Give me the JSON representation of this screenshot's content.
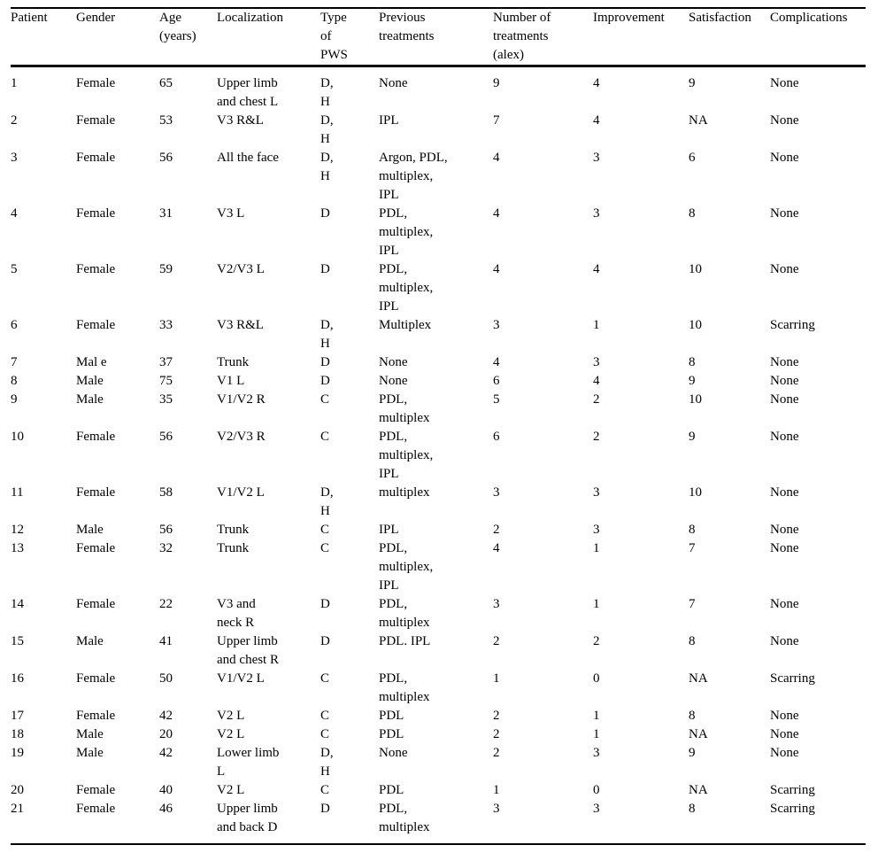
{
  "colors": {
    "background": "#ffffff",
    "text": "#000000",
    "border": "#000000"
  },
  "table": {
    "columns": [
      {
        "id": "patient",
        "label": "Patient"
      },
      {
        "id": "gender",
        "label": "Gender"
      },
      {
        "id": "age",
        "label": "Age\n(years)"
      },
      {
        "id": "localization",
        "label": "Localization"
      },
      {
        "id": "type_of_pws",
        "label": "Type\nof\nPWS"
      },
      {
        "id": "previous_treatments",
        "label": "Previous\ntreatments"
      },
      {
        "id": "number_of_treatments",
        "label": "Number of\ntreatments\n(alex)"
      },
      {
        "id": "improvement",
        "label": "Improvement"
      },
      {
        "id": "satisfaction",
        "label": "Satisfaction"
      },
      {
        "id": "complications",
        "label": "Complications"
      }
    ],
    "rows": [
      [
        "1",
        "Female",
        "65",
        "Upper limb\nand chest L",
        "D,\nH",
        "None",
        "9",
        "4",
        "9",
        "None"
      ],
      [
        "2",
        "Female",
        "53",
        "V3 R&L",
        "D,\nH",
        "IPL",
        "7",
        "4",
        "NA",
        "None"
      ],
      [
        "3",
        "Female",
        "56",
        "All the face",
        "D,\nH",
        "Argon, PDL,\nmultiplex,\nIPL",
        "4",
        "3",
        "6",
        "None"
      ],
      [
        "4",
        "Female",
        "31",
        "V3 L",
        "D",
        "PDL,\nmultiplex,\nIPL",
        "4",
        "3",
        "8",
        "None"
      ],
      [
        "5",
        "Female",
        "59",
        "V2/V3 L",
        "D",
        "PDL,\nmultiplex,\nIPL",
        "4",
        "4",
        "10",
        "None"
      ],
      [
        "6",
        "Female",
        "33",
        "V3 R&L",
        "D,\nH",
        "Multiplex",
        "3",
        "1",
        "10",
        "Scarring"
      ],
      [
        "7",
        "Mal e",
        "37",
        "Trunk",
        "D",
        "None",
        "4",
        "3",
        "8",
        "None"
      ],
      [
        "8",
        "Male",
        "75",
        "V1 L",
        "D",
        "None",
        "6",
        "4",
        "9",
        "None"
      ],
      [
        "9",
        "Male",
        "35",
        "V1/V2 R",
        "C",
        "PDL,\nmultiplex",
        "5",
        "2",
        "10",
        "None"
      ],
      [
        "10",
        "Female",
        "56",
        "V2/V3 R",
        "C",
        "PDL,\nmultiplex,\nIPL",
        "6",
        "2",
        "9",
        "None"
      ],
      [
        "11",
        "Female",
        "58",
        "V1/V2 L",
        "D,\nH",
        "multiplex",
        "3",
        "3",
        "10",
        "None"
      ],
      [
        "12",
        "Male",
        "56",
        "Trunk",
        "C",
        "IPL",
        "2",
        "3",
        "8",
        "None"
      ],
      [
        "13",
        "Female",
        "32",
        "Trunk",
        "C",
        "PDL,\nmultiplex,\nIPL",
        "4",
        "1",
        "7",
        "None"
      ],
      [
        "14",
        "Female",
        "22",
        "V3 and\nneck R",
        "D",
        "PDL,\nmultiplex",
        "3",
        "1",
        "7",
        "None"
      ],
      [
        "15",
        "Male",
        "41",
        "Upper limb\nand chest R",
        "D",
        "PDL. IPL",
        "2",
        "2",
        "8",
        "None"
      ],
      [
        "16",
        "Female",
        "50",
        "V1/V2 L",
        "C",
        "PDL,\nmultiplex",
        "1",
        "0",
        "NA",
        "Scarring"
      ],
      [
        "17",
        "Female",
        "42",
        "V2 L",
        "C",
        "PDL",
        "2",
        "1",
        "8",
        "None"
      ],
      [
        "18",
        "Male",
        "20",
        "V2 L",
        "C",
        "PDL",
        "2",
        "1",
        "NA",
        "None"
      ],
      [
        "19",
        "Male",
        "42",
        "Lower limb\nL",
        "D,\nH",
        "None",
        "2",
        "3",
        "9",
        "None"
      ],
      [
        "20",
        "Female",
        "40",
        "V2 L",
        "C",
        "PDL",
        "1",
        "0",
        "NA",
        "Scarring"
      ],
      [
        "21",
        "Female",
        "46",
        "Upper limb\nand back D",
        "D",
        "PDL,\nmultiplex",
        "3",
        "3",
        "8",
        "Scarring"
      ]
    ]
  }
}
